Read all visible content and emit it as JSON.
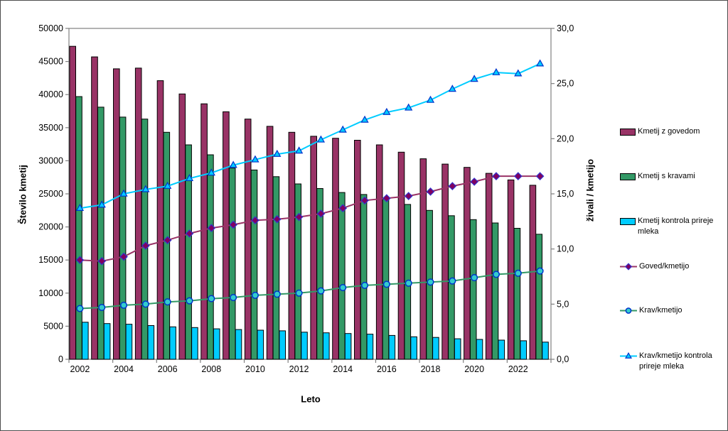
{
  "chart_data": {
    "type": "combo-bar-line",
    "categories": [
      "2002",
      "2003",
      "2004",
      "2005",
      "2006",
      "2007",
      "2008",
      "2009",
      "2010",
      "2011",
      "2012",
      "2013",
      "2014",
      "2015",
      "2016",
      "2017",
      "2018",
      "2019",
      "2020",
      "2021",
      "2022",
      "2023"
    ],
    "bar_series": [
      {
        "name": "Kmetij z govedom",
        "color": "#993366",
        "axis": "left",
        "values": [
          47300,
          45700,
          43900,
          44000,
          42100,
          40100,
          38600,
          37400,
          36300,
          35200,
          34300,
          33700,
          33400,
          33100,
          32400,
          31300,
          30300,
          29500,
          29000,
          28100,
          27100,
          26300
        ]
      },
      {
        "name": "Kmetij s kravami",
        "color": "#339966",
        "axis": "left",
        "values": [
          39700,
          38100,
          36600,
          36300,
          34300,
          32400,
          30900,
          28900,
          28600,
          27600,
          26500,
          25800,
          25200,
          24900,
          24200,
          23400,
          22500,
          21700,
          21100,
          20600,
          19800,
          18900
        ]
      },
      {
        "name": "Kmetij kontrola prireje mleka",
        "color": "#00CCFF",
        "axis": "left",
        "values": [
          5600,
          5400,
          5300,
          5100,
          4900,
          4800,
          4600,
          4500,
          4400,
          4300,
          4100,
          4000,
          3900,
          3800,
          3600,
          3400,
          3300,
          3100,
          3000,
          2900,
          2800,
          2600
        ]
      }
    ],
    "line_series": [
      {
        "name": "Goved/kmetijo",
        "color": "#993366",
        "marker": "diamond",
        "marker_fill": "#800060",
        "marker_stroke": "#3333CC",
        "axis": "right",
        "values": [
          9.0,
          8.9,
          9.3,
          10.3,
          10.8,
          11.4,
          11.9,
          12.2,
          12.6,
          12.7,
          12.9,
          13.2,
          13.7,
          14.4,
          14.6,
          14.8,
          15.2,
          15.7,
          16.1,
          16.6,
          16.6,
          16.6
        ]
      },
      {
        "name": "Krav/kmetijo",
        "color": "#339966",
        "marker": "circle",
        "marker_fill": "#33CCCC",
        "marker_stroke": "#0033CC",
        "axis": "right",
        "values": [
          4.6,
          4.7,
          4.9,
          5.0,
          5.2,
          5.3,
          5.5,
          5.6,
          5.8,
          5.9,
          6.0,
          6.2,
          6.5,
          6.7,
          6.8,
          6.9,
          7.0,
          7.1,
          7.4,
          7.7,
          7.8,
          8.0
        ]
      },
      {
        "name": "Krav/kmetijo kontrola prireje mleka",
        "color": "#00CCFF",
        "marker": "triangle",
        "marker_fill": "#00CCFF",
        "marker_stroke": "#0033CC",
        "axis": "right",
        "values": [
          13.7,
          14.0,
          15.0,
          15.4,
          15.7,
          16.4,
          16.9,
          17.6,
          18.1,
          18.6,
          18.9,
          19.9,
          20.8,
          21.7,
          22.4,
          22.8,
          23.5,
          24.5,
          25.4,
          26.0,
          25.9,
          26.8
        ]
      }
    ],
    "left_axis": {
      "title": "Število kmetij",
      "min": 0,
      "max": 50000,
      "step": 5000
    },
    "right_axis": {
      "title": "živali / kmetijo",
      "min": 0,
      "max": 30,
      "step": 5,
      "decimal_comma": true
    },
    "x_axis": {
      "title": "Leto",
      "label_interval": 2,
      "tick_interval": 2
    },
    "legend_position": "right",
    "gridlines": false,
    "axis_color": "#808080",
    "bar_border_color": "#000000"
  }
}
